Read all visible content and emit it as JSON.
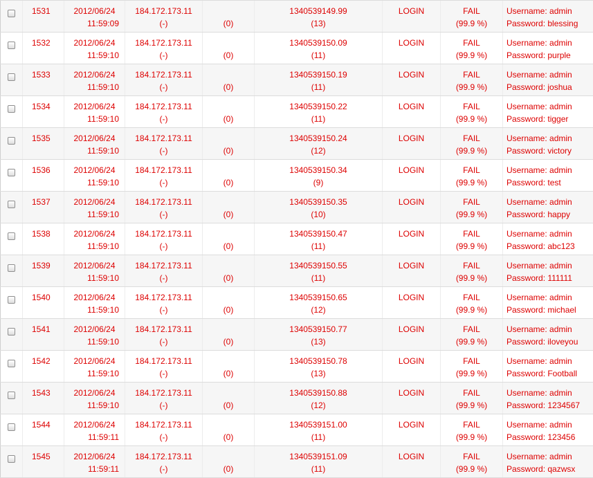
{
  "log": {
    "rows": [
      {
        "id": "1531",
        "date": "2012/06/24",
        "time": "11:59:09",
        "ip": "184.172.173.11",
        "ip_sub": "(-)",
        "count": "(0)",
        "timestamp": "1340539149.99",
        "ts_sub": "(13)",
        "action": "LOGIN",
        "result": "FAIL",
        "result_pct": "(99.9 %)",
        "username": "Username: admin",
        "password": "Password: blessing"
      },
      {
        "id": "1532",
        "date": "2012/06/24",
        "time": "11:59:10",
        "ip": "184.172.173.11",
        "ip_sub": "(-)",
        "count": "(0)",
        "timestamp": "1340539150.09",
        "ts_sub": "(11)",
        "action": "LOGIN",
        "result": "FAIL",
        "result_pct": "(99.9 %)",
        "username": "Username: admin",
        "password": "Password: purple"
      },
      {
        "id": "1533",
        "date": "2012/06/24",
        "time": "11:59:10",
        "ip": "184.172.173.11",
        "ip_sub": "(-)",
        "count": "(0)",
        "timestamp": "1340539150.19",
        "ts_sub": "(11)",
        "action": "LOGIN",
        "result": "FAIL",
        "result_pct": "(99.9 %)",
        "username": "Username: admin",
        "password": "Password: joshua"
      },
      {
        "id": "1534",
        "date": "2012/06/24",
        "time": "11:59:10",
        "ip": "184.172.173.11",
        "ip_sub": "(-)",
        "count": "(0)",
        "timestamp": "1340539150.22",
        "ts_sub": "(11)",
        "action": "LOGIN",
        "result": "FAIL",
        "result_pct": "(99.9 %)",
        "username": "Username: admin",
        "password": "Password: tigger"
      },
      {
        "id": "1535",
        "date": "2012/06/24",
        "time": "11:59:10",
        "ip": "184.172.173.11",
        "ip_sub": "(-)",
        "count": "(0)",
        "timestamp": "1340539150.24",
        "ts_sub": "(12)",
        "action": "LOGIN",
        "result": "FAIL",
        "result_pct": "(99.9 %)",
        "username": "Username: admin",
        "password": "Password: victory"
      },
      {
        "id": "1536",
        "date": "2012/06/24",
        "time": "11:59:10",
        "ip": "184.172.173.11",
        "ip_sub": "(-)",
        "count": "(0)",
        "timestamp": "1340539150.34",
        "ts_sub": "(9)",
        "action": "LOGIN",
        "result": "FAIL",
        "result_pct": "(99.9 %)",
        "username": "Username: admin",
        "password": "Password: test"
      },
      {
        "id": "1537",
        "date": "2012/06/24",
        "time": "11:59:10",
        "ip": "184.172.173.11",
        "ip_sub": "(-)",
        "count": "(0)",
        "timestamp": "1340539150.35",
        "ts_sub": "(10)",
        "action": "LOGIN",
        "result": "FAIL",
        "result_pct": "(99.9 %)",
        "username": "Username: admin",
        "password": "Password: happy"
      },
      {
        "id": "1538",
        "date": "2012/06/24",
        "time": "11:59:10",
        "ip": "184.172.173.11",
        "ip_sub": "(-)",
        "count": "(0)",
        "timestamp": "1340539150.47",
        "ts_sub": "(11)",
        "action": "LOGIN",
        "result": "FAIL",
        "result_pct": "(99.9 %)",
        "username": "Username: admin",
        "password": "Password: abc123"
      },
      {
        "id": "1539",
        "date": "2012/06/24",
        "time": "11:59:10",
        "ip": "184.172.173.11",
        "ip_sub": "(-)",
        "count": "(0)",
        "timestamp": "1340539150.55",
        "ts_sub": "(11)",
        "action": "LOGIN",
        "result": "FAIL",
        "result_pct": "(99.9 %)",
        "username": "Username: admin",
        "password": "Password: 111111"
      },
      {
        "id": "1540",
        "date": "2012/06/24",
        "time": "11:59:10",
        "ip": "184.172.173.11",
        "ip_sub": "(-)",
        "count": "(0)",
        "timestamp": "1340539150.65",
        "ts_sub": "(12)",
        "action": "LOGIN",
        "result": "FAIL",
        "result_pct": "(99.9 %)",
        "username": "Username: admin",
        "password": "Password: michael"
      },
      {
        "id": "1541",
        "date": "2012/06/24",
        "time": "11:59:10",
        "ip": "184.172.173.11",
        "ip_sub": "(-)",
        "count": "(0)",
        "timestamp": "1340539150.77",
        "ts_sub": "(13)",
        "action": "LOGIN",
        "result": "FAIL",
        "result_pct": "(99.9 %)",
        "username": "Username: admin",
        "password": "Password: iloveyou"
      },
      {
        "id": "1542",
        "date": "2012/06/24",
        "time": "11:59:10",
        "ip": "184.172.173.11",
        "ip_sub": "(-)",
        "count": "(0)",
        "timestamp": "1340539150.78",
        "ts_sub": "(13)",
        "action": "LOGIN",
        "result": "FAIL",
        "result_pct": "(99.9 %)",
        "username": "Username: admin",
        "password": "Password: Football"
      },
      {
        "id": "1543",
        "date": "2012/06/24",
        "time": "11:59:10",
        "ip": "184.172.173.11",
        "ip_sub": "(-)",
        "count": "(0)",
        "timestamp": "1340539150.88",
        "ts_sub": "(12)",
        "action": "LOGIN",
        "result": "FAIL",
        "result_pct": "(99.9 %)",
        "username": "Username: admin",
        "password": "Password: 1234567"
      },
      {
        "id": "1544",
        "date": "2012/06/24",
        "time": "11:59:11",
        "ip": "184.172.173.11",
        "ip_sub": "(-)",
        "count": "(0)",
        "timestamp": "1340539151.00",
        "ts_sub": "(11)",
        "action": "LOGIN",
        "result": "FAIL",
        "result_pct": "(99.9 %)",
        "username": "Username: admin",
        "password": "Password: 123456"
      },
      {
        "id": "1545",
        "date": "2012/06/24",
        "time": "11:59:11",
        "ip": "184.172.173.11",
        "ip_sub": "(-)",
        "count": "(0)",
        "timestamp": "1340539151.09",
        "ts_sub": "(11)",
        "action": "LOGIN",
        "result": "FAIL",
        "result_pct": "(99.9 %)",
        "username": "Username: admin",
        "password": "Password: qazwsx"
      }
    ]
  },
  "colors": {
    "text": "#dd0000",
    "row_odd": "#f6f6f6",
    "row_even": "#ffffff",
    "border": "#dcdcdc"
  }
}
